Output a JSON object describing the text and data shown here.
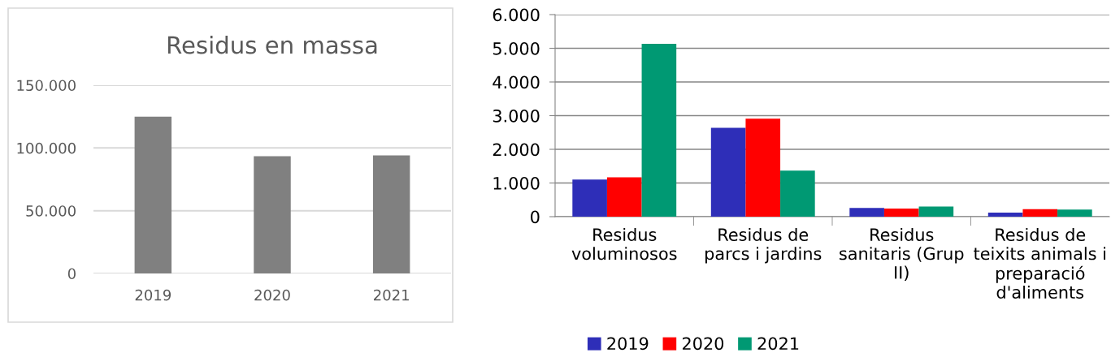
{
  "chart_data": [
    {
      "type": "bar",
      "title": "Residus en massa",
      "categories": [
        "2019",
        "2020",
        "2021"
      ],
      "values": [
        125000,
        93400,
        94100
      ],
      "color": "#808080",
      "ylim": [
        0,
        150000
      ],
      "yticks": [
        {
          "value": 0,
          "label": "0"
        },
        {
          "value": 50000,
          "label": "50.000"
        },
        {
          "value": 100000,
          "label": "100.000"
        },
        {
          "value": 150000,
          "label": "150.000"
        }
      ],
      "grid": "y",
      "legend": false
    },
    {
      "type": "bar",
      "categories": [
        "Residus\nvoluminosos",
        "Residus de\nparcs i jardins",
        "Residus\nsanitaris (Grup\nII)",
        "Residus de\nteixits animals i\npreparació\nd'aliments"
      ],
      "series": [
        {
          "name": "2019",
          "color": "#2e2eb8",
          "values": [
            1100,
            2640,
            260,
            120
          ]
        },
        {
          "name": "2020",
          "color": "#ff0000",
          "values": [
            1170,
            2910,
            240,
            220
          ]
        },
        {
          "name": "2021",
          "color": "#009973",
          "values": [
            5130,
            1370,
            300,
            210
          ]
        }
      ],
      "ylim": [
        0,
        6000
      ],
      "yticks": [
        {
          "value": 0,
          "label": "0"
        },
        {
          "value": 1000,
          "label": "1.000"
        },
        {
          "value": 2000,
          "label": "2.000"
        },
        {
          "value": 3000,
          "label": "3.000"
        },
        {
          "value": 4000,
          "label": "4.000"
        },
        {
          "value": 5000,
          "label": "5.000"
        },
        {
          "value": 6000,
          "label": "6.000"
        }
      ],
      "grid": "y",
      "legend": "bottom"
    }
  ]
}
